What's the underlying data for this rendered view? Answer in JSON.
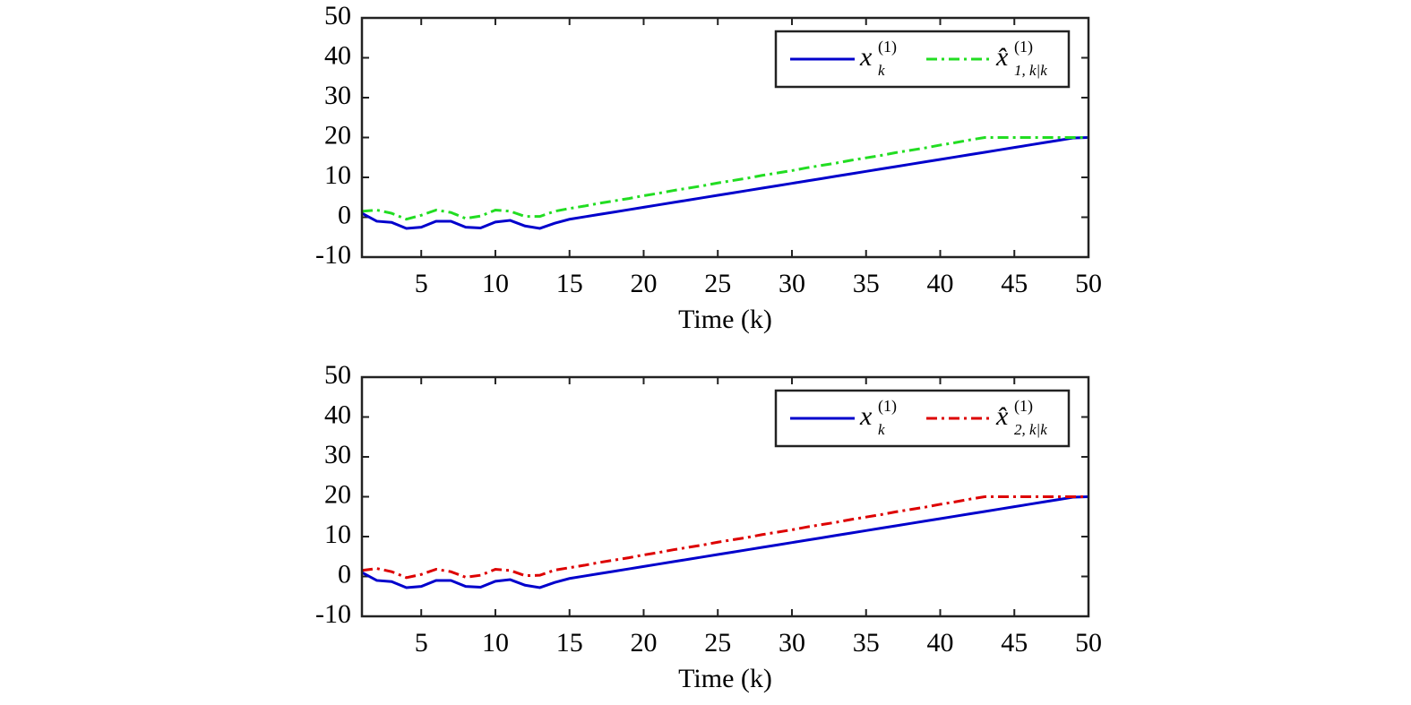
{
  "chart_data": [
    {
      "type": "line",
      "xlabel": "Time (k)",
      "x": [
        1,
        2,
        3,
        4,
        5,
        6,
        7,
        8,
        9,
        10,
        11,
        12,
        13,
        14,
        15,
        16,
        17,
        18,
        19,
        20,
        21,
        22,
        23,
        24,
        25,
        26,
        27,
        28,
        29,
        30,
        31,
        32,
        33,
        34,
        35,
        36,
        37,
        38,
        39,
        40,
        41,
        42,
        43,
        44,
        45,
        46,
        47,
        48,
        49,
        50
      ],
      "xlim": [
        1,
        50
      ],
      "xticks": [
        5,
        10,
        15,
        20,
        25,
        30,
        35,
        40,
        45,
        50
      ],
      "ylim": [
        -10,
        50
      ],
      "yticks": [
        -10,
        0,
        10,
        20,
        30,
        40,
        50
      ],
      "legend": "upper right",
      "series": [
        {
          "name": "x",
          "name_sup": "(1)",
          "name_sub": "k",
          "color": "#0000cc",
          "style": "solid",
          "values": [
            1,
            -1,
            -1.3,
            -2.8,
            -2.5,
            -1,
            -1,
            -2.5,
            -2.7,
            -1.2,
            -0.8,
            -2.2,
            -2.8,
            -1.5,
            -0.5,
            0.1,
            0.7,
            1.3,
            1.9,
            2.5,
            3.1,
            3.7,
            4.3,
            4.9,
            5.5,
            6.1,
            6.7,
            7.3,
            7.9,
            8.5,
            9.1,
            9.7,
            10.3,
            10.9,
            11.5,
            12.1,
            12.7,
            13.3,
            13.9,
            14.5,
            15.1,
            15.7,
            16.3,
            16.9,
            17.5,
            18.1,
            18.7,
            19.3,
            19.9,
            20
          ]
        },
        {
          "name": "x̂",
          "name_sup": "(1)",
          "name_sub": "1, k|k",
          "color": "#22dd22",
          "style": "dashdot",
          "values": [
            1.5,
            1.8,
            1,
            -0.5,
            0.5,
            1.8,
            1.2,
            -0.3,
            0.3,
            1.8,
            1.5,
            0.2,
            0.2,
            1.5,
            2.2,
            2.8,
            3.5,
            4.1,
            4.7,
            5.4,
            6.0,
            6.7,
            7.3,
            7.9,
            8.6,
            9.2,
            9.8,
            10.5,
            11.1,
            11.7,
            12.4,
            13.0,
            13.6,
            14.3,
            14.9,
            15.5,
            16.2,
            16.8,
            17.4,
            18.1,
            18.7,
            19.4,
            20,
            20,
            20,
            20,
            20,
            20,
            20,
            20
          ]
        }
      ]
    },
    {
      "type": "line",
      "xlabel": "Time (k)",
      "x": [
        1,
        2,
        3,
        4,
        5,
        6,
        7,
        8,
        9,
        10,
        11,
        12,
        13,
        14,
        15,
        16,
        17,
        18,
        19,
        20,
        21,
        22,
        23,
        24,
        25,
        26,
        27,
        28,
        29,
        30,
        31,
        32,
        33,
        34,
        35,
        36,
        37,
        38,
        39,
        40,
        41,
        42,
        43,
        44,
        45,
        46,
        47,
        48,
        49,
        50
      ],
      "xlim": [
        1,
        50
      ],
      "xticks": [
        5,
        10,
        15,
        20,
        25,
        30,
        35,
        40,
        45,
        50
      ],
      "ylim": [
        -10,
        50
      ],
      "yticks": [
        -10,
        0,
        10,
        20,
        30,
        40,
        50
      ],
      "legend": "upper right",
      "series": [
        {
          "name": "x",
          "name_sup": "(1)",
          "name_sub": "k",
          "color": "#0000cc",
          "style": "solid",
          "values": [
            1,
            -1,
            -1.3,
            -2.8,
            -2.5,
            -1,
            -1,
            -2.5,
            -2.7,
            -1.2,
            -0.8,
            -2.2,
            -2.8,
            -1.5,
            -0.5,
            0.1,
            0.7,
            1.3,
            1.9,
            2.5,
            3.1,
            3.7,
            4.3,
            4.9,
            5.5,
            6.1,
            6.7,
            7.3,
            7.9,
            8.5,
            9.1,
            9.7,
            10.3,
            10.9,
            11.5,
            12.1,
            12.7,
            13.3,
            13.9,
            14.5,
            15.1,
            15.7,
            16.3,
            16.9,
            17.5,
            18.1,
            18.7,
            19.3,
            19.9,
            20
          ]
        },
        {
          "name": "x̂",
          "name_sup": "(1)",
          "name_sub": "2, k|k",
          "color": "#dd0000",
          "style": "dashdot",
          "values": [
            1.5,
            2,
            1.2,
            -0.3,
            0.5,
            1.8,
            1.2,
            -0.2,
            0.3,
            1.8,
            1.5,
            0.2,
            0.3,
            1.6,
            2.2,
            2.8,
            3.5,
            4.1,
            4.7,
            5.4,
            6.0,
            6.7,
            7.3,
            7.9,
            8.6,
            9.2,
            9.8,
            10.5,
            11.1,
            11.7,
            12.4,
            13.0,
            13.6,
            14.3,
            14.9,
            15.5,
            16.2,
            16.8,
            17.4,
            18.1,
            18.7,
            19.4,
            20,
            20,
            20,
            20,
            20,
            20,
            20,
            20
          ]
        }
      ]
    }
  ]
}
